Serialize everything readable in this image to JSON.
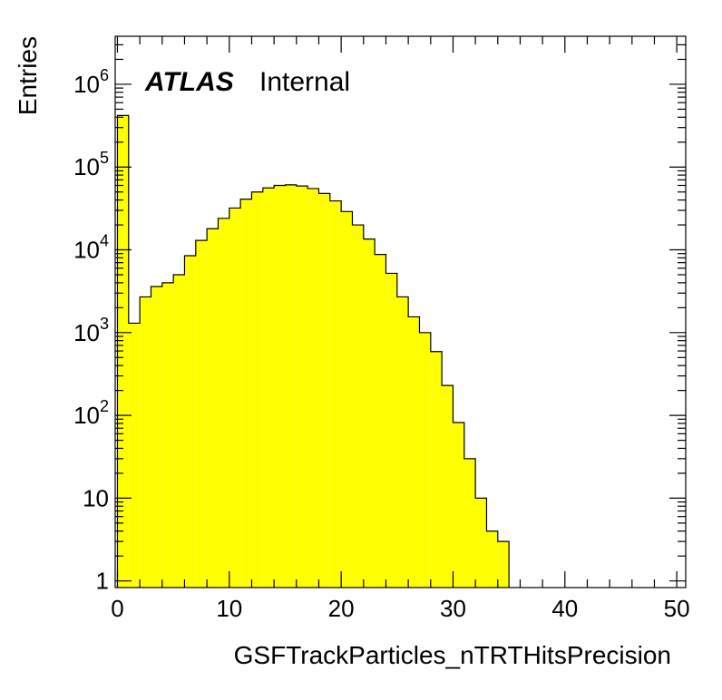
{
  "chart_data": {
    "type": "bar",
    "xlabel": "GSFTrackParticles_nTRTHitsPrecision",
    "ylabel": "Entries",
    "label_bold": "ATLAS",
    "label": "Internal",
    "xlim": [
      -0.2,
      50.8
    ],
    "ylim_log10": [
      -0.08,
      6.58
    ],
    "log_y": true,
    "fill_color": "#ffff00",
    "line_color": "#000000",
    "bin_width": 1,
    "bin_low_edges": [
      0,
      1,
      2,
      3,
      4,
      5,
      6,
      7,
      8,
      9,
      10,
      11,
      12,
      13,
      14,
      15,
      16,
      17,
      18,
      19,
      20,
      21,
      22,
      23,
      24,
      25,
      26,
      27,
      28,
      29,
      30,
      31,
      32,
      33,
      34
    ],
    "values": [
      420000,
      1300,
      2700,
      3600,
      4000,
      5000,
      8500,
      13000,
      18000,
      24000,
      32000,
      41000,
      50000,
      56000,
      60000,
      61000,
      59000,
      55000,
      48000,
      39000,
      29000,
      20000,
      13500,
      8800,
      5200,
      2700,
      1550,
      1000,
      590,
      230,
      82,
      30,
      10,
      4,
      3
    ],
    "x_ticks": [
      {
        "value": 0,
        "label": "0"
      },
      {
        "value": 10,
        "label": "10"
      },
      {
        "value": 20,
        "label": "20"
      },
      {
        "value": 30,
        "label": "30"
      },
      {
        "value": 40,
        "label": "40"
      },
      {
        "value": 50,
        "label": "50"
      }
    ],
    "y_ticks": [
      {
        "value": 1,
        "base": "1",
        "exp": ""
      },
      {
        "value": 10,
        "base": "10",
        "exp": ""
      },
      {
        "value": 100,
        "base": "10",
        "exp": "2"
      },
      {
        "value": 1000,
        "base": "10",
        "exp": "3"
      },
      {
        "value": 10000,
        "base": "10",
        "exp": "4"
      },
      {
        "value": 100000,
        "base": "10",
        "exp": "5"
      },
      {
        "value": 1000000,
        "base": "10",
        "exp": "6"
      }
    ]
  }
}
